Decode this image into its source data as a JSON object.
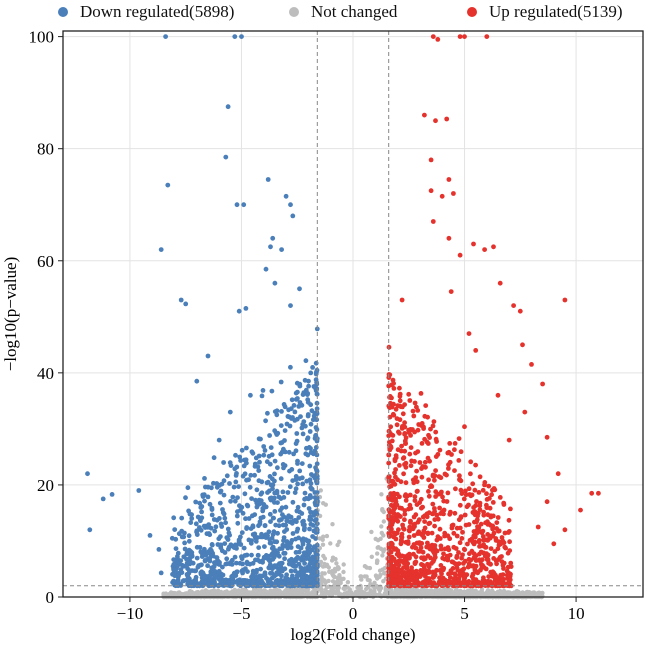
{
  "chart_data": {
    "type": "scatter",
    "title": "",
    "xlabel": "log2(Fold change)",
    "ylabel": "−log10(p−value)",
    "xlim": [
      -13,
      13
    ],
    "ylim": [
      0,
      101
    ],
    "x_ticks": [
      -10,
      -5,
      0,
      5,
      10
    ],
    "y_ticks": [
      0,
      20,
      40,
      60,
      80,
      100
    ],
    "grid": true,
    "legend_position": "top",
    "thresholds": {
      "fold_change_x": [
        -1.6,
        1.6
      ],
      "pvalue_y": 2
    },
    "series": [
      {
        "name": "Down regulated(5898)",
        "count": 5898,
        "color": "#4a7fb9",
        "points": [
          [
            -8.4,
            100
          ],
          [
            -5.3,
            100
          ],
          [
            -5.0,
            100
          ],
          [
            -5.6,
            87.5
          ],
          [
            -5.7,
            78.5
          ],
          [
            -8.3,
            73.5
          ],
          [
            -5.2,
            70
          ],
          [
            -4.9,
            70
          ],
          [
            -3.8,
            74.5
          ],
          [
            -3.0,
            71.5
          ],
          [
            -2.8,
            70
          ],
          [
            -2.7,
            68
          ],
          [
            -3.6,
            64
          ],
          [
            -3.2,
            62
          ],
          [
            -3.7,
            62.5
          ],
          [
            -3.9,
            58.5
          ],
          [
            -3.5,
            56
          ],
          [
            -8.6,
            62
          ],
          [
            -7.7,
            53
          ],
          [
            -7.5,
            52.3
          ],
          [
            -2.4,
            55
          ],
          [
            -2.8,
            52
          ],
          [
            -4.8,
            51.5
          ],
          [
            -5.1,
            51
          ],
          [
            -6.5,
            43
          ],
          [
            -7.0,
            38.5
          ],
          [
            -11.9,
            22
          ],
          [
            -11.2,
            17.5
          ],
          [
            -10.8,
            18.3
          ],
          [
            -9.6,
            19
          ],
          [
            -11.8,
            12
          ],
          [
            -9.1,
            11
          ],
          [
            -8.7,
            8.5
          ],
          [
            -8.6,
            4.3
          ],
          [
            -7.4,
            19.5
          ],
          [
            -6.0,
            28
          ],
          [
            -5.5,
            33
          ],
          [
            -4.6,
            36
          ],
          [
            -5.8,
            24
          ]
        ],
        "cloud": {
          "x_range": [
            -9,
            -1.6
          ],
          "y_range": [
            2,
            50
          ],
          "n": 1200
        }
      },
      {
        "name": "Not changed",
        "color": "#bdbdbd",
        "cloud": {
          "x_range": [
            -9,
            9
          ],
          "y_range": [
            0,
            26
          ],
          "n": 2400
        }
      },
      {
        "name": "Up regulated(5139)",
        "count": 5139,
        "color": "#e5322d",
        "points": [
          [
            3.6,
            100
          ],
          [
            3.8,
            99.5
          ],
          [
            4.8,
            100
          ],
          [
            5.0,
            100
          ],
          [
            6.0,
            100
          ],
          [
            3.2,
            86
          ],
          [
            3.7,
            85
          ],
          [
            4.2,
            85.3
          ],
          [
            3.5,
            78
          ],
          [
            4.3,
            74.5
          ],
          [
            3.5,
            72.5
          ],
          [
            4.5,
            72
          ],
          [
            4.0,
            71.5
          ],
          [
            3.6,
            67
          ],
          [
            4.3,
            64
          ],
          [
            4.8,
            61
          ],
          [
            5.4,
            63
          ],
          [
            5.9,
            62
          ],
          [
            6.3,
            62.5
          ],
          [
            9.5,
            53
          ],
          [
            6.6,
            56
          ],
          [
            7.2,
            52
          ],
          [
            7.5,
            51
          ],
          [
            7.6,
            45
          ],
          [
            8.0,
            41.5
          ],
          [
            8.5,
            38
          ],
          [
            7.7,
            33
          ],
          [
            8.7,
            28.5
          ],
          [
            9.2,
            22
          ],
          [
            8.7,
            17
          ],
          [
            10.7,
            18.5
          ],
          [
            11.0,
            18.5
          ],
          [
            10.2,
            15.5
          ],
          [
            9.5,
            12
          ],
          [
            8.3,
            12.5
          ],
          [
            9.0,
            9.5
          ],
          [
            7.0,
            28
          ],
          [
            6.5,
            36
          ],
          [
            5.5,
            44
          ],
          [
            4.4,
            54.5
          ],
          [
            5.2,
            47
          ],
          [
            2.2,
            53
          ]
        ],
        "cloud": {
          "x_range": [
            1.6,
            8
          ],
          "y_range": [
            2,
            50
          ],
          "n": 1100
        }
      }
    ]
  }
}
